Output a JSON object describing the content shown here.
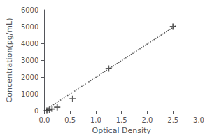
{
  "chart_data": {
    "type": "scatter",
    "xlabel": "Optical Density",
    "ylabel": "Concentration(pg/mL)",
    "xlim": [
      0,
      3
    ],
    "ylim": [
      0,
      6000
    ],
    "xticks": [
      {
        "value": 0,
        "label": "0.0"
      },
      0.5,
      {
        "value": 1,
        "label": "1.0"
      },
      1.5,
      {
        "value": 2,
        "label": "2.0"
      },
      2.5,
      {
        "value": 3,
        "label": "3.0"
      }
    ],
    "yticks": [
      0,
      1000,
      2000,
      3000,
      4000,
      5000,
      6000
    ],
    "grid": false,
    "series": [
      {
        "type": "scatter",
        "x": [
          0.05,
          0.1,
          0.15,
          0.25,
          0.55,
          1.25,
          2.5
        ],
        "values": [
          0,
          50,
          100,
          200,
          700,
          2500,
          5000
        ],
        "color": "#333333",
        "marker": "plus"
      },
      {
        "type": "line",
        "x": [
          0.0,
          2.55
        ],
        "values": [
          0,
          5050
        ],
        "color": "#555555",
        "line_style": "dotted"
      }
    ]
  }
}
